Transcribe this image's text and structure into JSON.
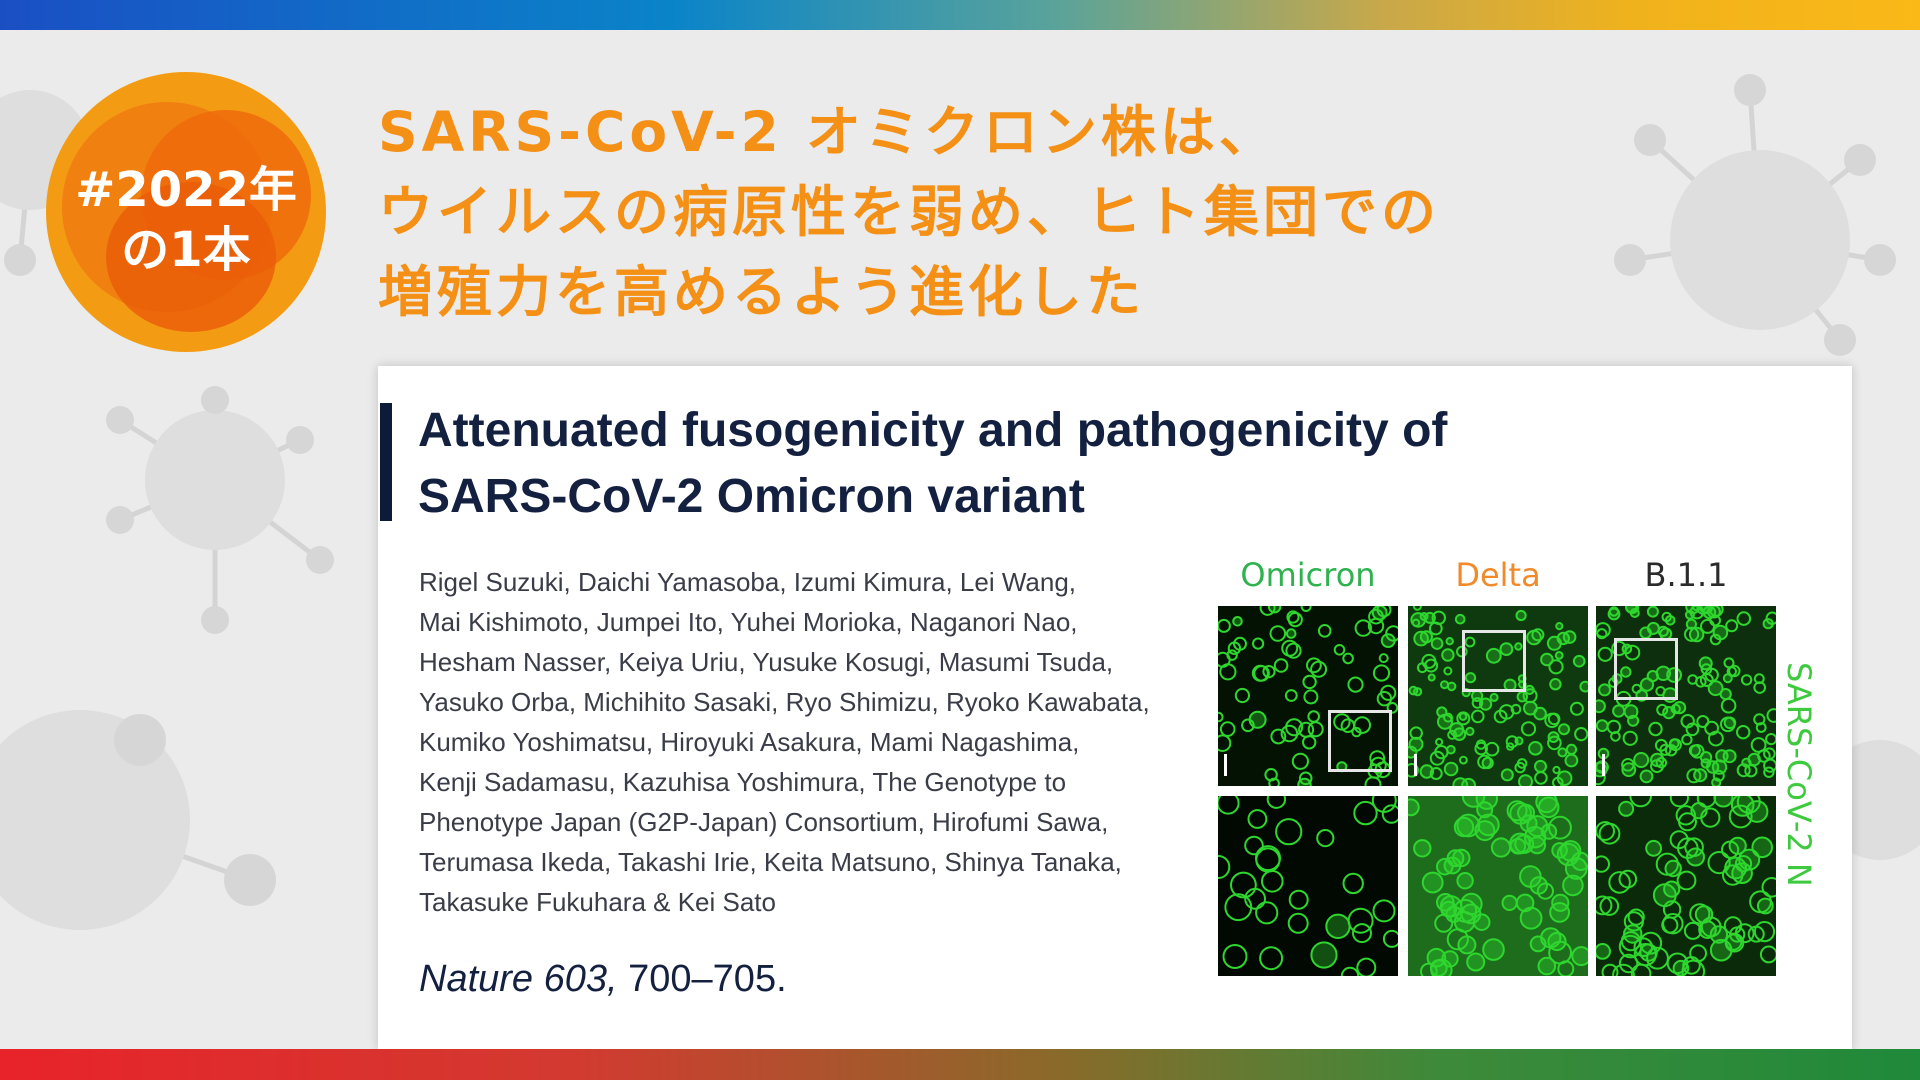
{
  "badge": {
    "line1": "#2022年",
    "line2": "の1本"
  },
  "headline": {
    "line1": "SARS-CoV-2 オミクロン株は、",
    "line2": "ウイルスの病原性を弱め、ヒト集団での",
    "line3": "増殖力を高めるよう進化した"
  },
  "paper": {
    "title_line1": "Attenuated fusogenicity and pathogenicity of",
    "title_line2": "SARS-CoV-2 Omicron variant",
    "authors": [
      "Rigel Suzuki, Daichi Yamasoba, Izumi Kimura, Lei Wang,",
      "Mai Kishimoto, Jumpei Ito, Yuhei Morioka, Naganori Nao,",
      "Hesham Nasser, Keiya Uriu, Yusuke Kosugi, Masumi Tsuda,",
      "Yasuko Orba, Michihito Sasaki, Ryo Shimizu, Ryoko Kawabata,",
      "Kumiko Yoshimatsu, Hiroyuki Asakura, Mami Nagashima,",
      "Kenji Sadamasu, Kazuhisa Yoshimura, The Genotype to",
      "Phenotype Japan (G2P-Japan) Consortium, Hirofumi Sawa,",
      "Terumasa Ikeda, Takashi Irie, Keita Matsuno, Shinya Tanaka,",
      "Takasuke Fukuhara & Kei Sato"
    ],
    "journal": "Nature 603,",
    "pages": " 700–705."
  },
  "figure": {
    "labels": {
      "omicron": "Omicron",
      "delta": "Delta",
      "b11": "B.1.1"
    },
    "label_colors": {
      "omicron": "#2fb24f",
      "delta": "#f08a2a",
      "b11": "#2b2b2b"
    },
    "side_label": "SARS-CoV-2 N",
    "stain_color": "#2ed62e"
  },
  "colors": {
    "headline": "#f39015",
    "badge": "#f49b14",
    "title": "#13203f"
  }
}
